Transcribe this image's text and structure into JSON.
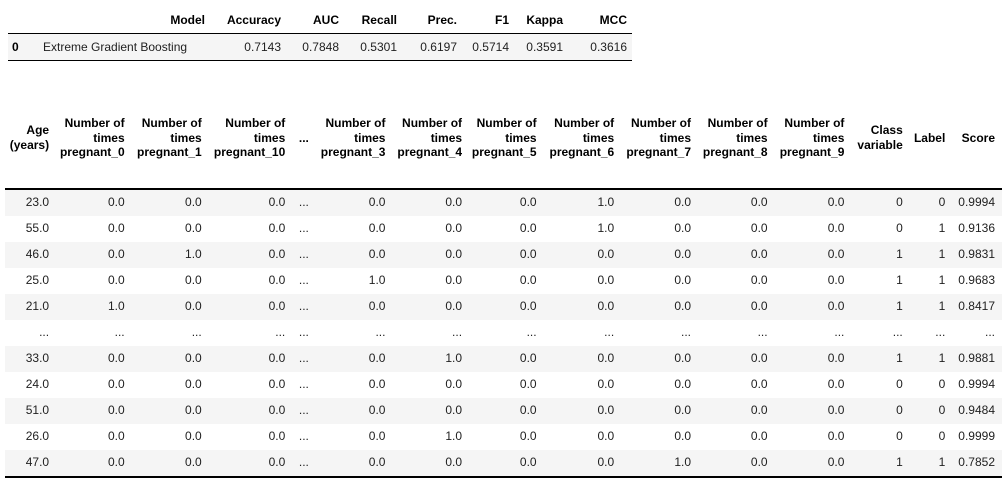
{
  "colors": {
    "stripe": "#f5f5f5",
    "border": "#000000",
    "text": "#212121",
    "header-text": "#000000",
    "bg": "#ffffff"
  },
  "metrics_table": {
    "row_header": true,
    "blank_header_row": false,
    "headers": [
      "",
      "Model",
      "Accuracy",
      "AUC",
      "Recall",
      "Prec.",
      "F1",
      "Kappa",
      "MCC"
    ],
    "rows": [
      [
        "0",
        "Extreme Gradient Boosting",
        "0.7143",
        "0.7848",
        "0.5301",
        "0.6197",
        "0.5714",
        "0.3591",
        "0.3616"
      ]
    ]
  },
  "predictions_table": {
    "row_header": false,
    "blank_header_row": true,
    "headers": [
      "Age\n(years)",
      "Number of\ntimes\npregnant_0",
      "Number of\ntimes\npregnant_1",
      "Number of\ntimes\npregnant_10",
      "...",
      "Number of\ntimes\npregnant_3",
      "Number of\ntimes\npregnant_4",
      "Number of\ntimes\npregnant_5",
      "Number of\ntimes\npregnant_6",
      "Number of\ntimes\npregnant_7",
      "Number of\ntimes\npregnant_8",
      "Number of\ntimes\npregnant_9",
      "Class\nvariable",
      "Label",
      "Score"
    ],
    "rows": [
      [
        "23.0",
        "0.0",
        "0.0",
        "0.0",
        "...",
        "0.0",
        "0.0",
        "0.0",
        "1.0",
        "0.0",
        "0.0",
        "0.0",
        "0",
        "0",
        "0.9994"
      ],
      [
        "55.0",
        "0.0",
        "0.0",
        "0.0",
        "...",
        "0.0",
        "0.0",
        "0.0",
        "1.0",
        "0.0",
        "0.0",
        "0.0",
        "0",
        "1",
        "0.9136"
      ],
      [
        "46.0",
        "0.0",
        "1.0",
        "0.0",
        "...",
        "0.0",
        "0.0",
        "0.0",
        "0.0",
        "0.0",
        "0.0",
        "0.0",
        "1",
        "1",
        "0.9831"
      ],
      [
        "25.0",
        "0.0",
        "0.0",
        "0.0",
        "...",
        "1.0",
        "0.0",
        "0.0",
        "0.0",
        "0.0",
        "0.0",
        "0.0",
        "1",
        "1",
        "0.9683"
      ],
      [
        "21.0",
        "1.0",
        "0.0",
        "0.0",
        "...",
        "0.0",
        "0.0",
        "0.0",
        "0.0",
        "0.0",
        "0.0",
        "0.0",
        "1",
        "1",
        "0.8417"
      ],
      [
        "...",
        "...",
        "...",
        "...",
        "...",
        "...",
        "...",
        "...",
        "...",
        "...",
        "...",
        "...",
        "...",
        "...",
        "..."
      ],
      [
        "33.0",
        "0.0",
        "0.0",
        "0.0",
        "...",
        "0.0",
        "1.0",
        "0.0",
        "0.0",
        "0.0",
        "0.0",
        "0.0",
        "1",
        "1",
        "0.9881"
      ],
      [
        "24.0",
        "0.0",
        "0.0",
        "0.0",
        "...",
        "0.0",
        "0.0",
        "0.0",
        "0.0",
        "0.0",
        "0.0",
        "0.0",
        "0",
        "0",
        "0.9994"
      ],
      [
        "51.0",
        "0.0",
        "0.0",
        "0.0",
        "...",
        "0.0",
        "0.0",
        "0.0",
        "0.0",
        "0.0",
        "0.0",
        "0.0",
        "0",
        "0",
        "0.9484"
      ],
      [
        "26.0",
        "0.0",
        "0.0",
        "0.0",
        "...",
        "0.0",
        "1.0",
        "0.0",
        "0.0",
        "0.0",
        "0.0",
        "0.0",
        "0",
        "0",
        "0.9999"
      ],
      [
        "47.0",
        "0.0",
        "0.0",
        "0.0",
        "...",
        "0.0",
        "0.0",
        "0.0",
        "0.0",
        "1.0",
        "0.0",
        "0.0",
        "1",
        "1",
        "0.7852"
      ]
    ]
  }
}
